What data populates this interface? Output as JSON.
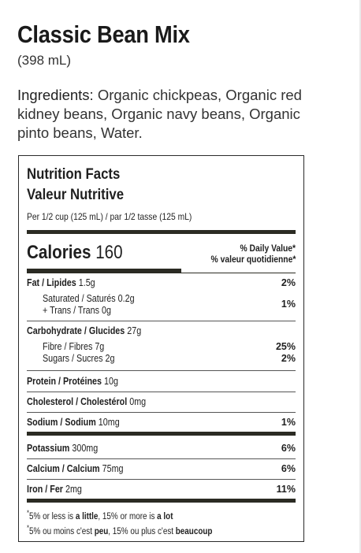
{
  "product": {
    "title": "Classic Bean Mix",
    "size": "(398 mL)"
  },
  "ingredients": {
    "label": "Ingredients:",
    "text": " Organic chickpeas, Organic red kidney beans, Organic navy beans, Organic pinto beans, Water."
  },
  "nutrition": {
    "title_en": "Nutrition Facts",
    "title_fr": "Valeur Nutritive",
    "serving": "Per 1/2 cup (125 mL) / par 1/2 tasse (125 mL)",
    "calories_label": "Calories",
    "calories_value": "160",
    "dv_header_en": "% Daily Value*",
    "dv_header_fr": "% valeur quotidienne*",
    "rows": {
      "fat": {
        "label": "Fat / Lipides",
        "amount": "1.5g",
        "pct": "2%"
      },
      "saturated": {
        "label": "Saturated / Saturés",
        "amount": "0.2g"
      },
      "trans": {
        "label": "+ Trans / Trans",
        "amount": "0g"
      },
      "sat_trans_pct": "1%",
      "carb": {
        "label": "Carbohydrate / Glucides",
        "amount": "27g"
      },
      "fibre": {
        "label": "Fibre / Fibres",
        "amount": "7g",
        "pct": "25%"
      },
      "sugars": {
        "label": "Sugars / Sucres",
        "amount": "2g",
        "pct": "2%"
      },
      "protein": {
        "label": "Protein / Protéines",
        "amount": "10g"
      },
      "cholesterol": {
        "label": "Cholesterol / Cholestérol",
        "amount": "0mg"
      },
      "sodium": {
        "label": "Sodium / Sodium",
        "amount": "10mg",
        "pct": "1%"
      },
      "potassium": {
        "label": "Potassium",
        "amount": "300mg",
        "pct": "6%"
      },
      "calcium": {
        "label": "Calcium / Calcium",
        "amount": "75mg",
        "pct": "6%"
      },
      "iron": {
        "label": "Iron / Fer",
        "amount": "2mg",
        "pct": "11%"
      }
    },
    "footnote_en": {
      "pre": "5% or less is ",
      "a": "a little",
      "mid": ", 15% or more is ",
      "b": "a lot"
    },
    "footnote_fr": {
      "pre": "5% ou moins c'est ",
      "a": "peu",
      "mid": ", 15% ou plus c'est ",
      "b": "beaucoup"
    },
    "footnote_mark": "*"
  }
}
